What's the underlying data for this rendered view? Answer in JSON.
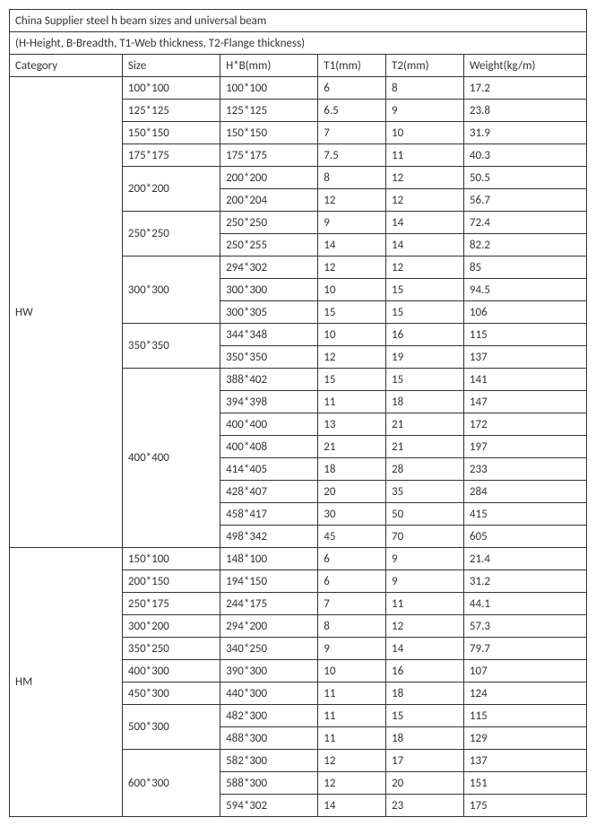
{
  "title": "China Supplier steel h beam sizes and universal beam",
  "subtitle": "(H-Height, B-Breadth, T1-Web thickness, T2-Flange thickness)",
  "columns": [
    "Category",
    "Size",
    "H*B(mm)",
    "T1(mm)",
    "T2(mm)",
    "Weight(kg/m)"
  ],
  "categories": [
    {
      "name": "HW",
      "sizes": [
        {
          "size": "100*100",
          "rows": [
            {
              "hb": "100*100",
              "t1": "6",
              "t2": "8",
              "wt": "17.2"
            }
          ]
        },
        {
          "size": "125*125",
          "rows": [
            {
              "hb": "125*125",
              "t1": "6.5",
              "t2": "9",
              "wt": "23.8"
            }
          ]
        },
        {
          "size": "150*150",
          "rows": [
            {
              "hb": "150*150",
              "t1": "7",
              "t2": "10",
              "wt": "31.9"
            }
          ]
        },
        {
          "size": "175*175",
          "rows": [
            {
              "hb": "175*175",
              "t1": "7.5",
              "t2": "11",
              "wt": "40.3"
            }
          ]
        },
        {
          "size": "200*200",
          "rows": [
            {
              "hb": "200*200",
              "t1": "8",
              "t2": "12",
              "wt": "50.5"
            },
            {
              "hb": "200*204",
              "t1": "12",
              "t2": "12",
              "wt": "56.7"
            }
          ]
        },
        {
          "size": "250*250",
          "rows": [
            {
              "hb": "250*250",
              "t1": "9",
              "t2": "14",
              "wt": "72.4"
            },
            {
              "hb": "250*255",
              "t1": "14",
              "t2": "14",
              "wt": "82.2"
            }
          ]
        },
        {
          "size": "300*300",
          "rows": [
            {
              "hb": "294*302",
              "t1": "12",
              "t2": "12",
              "wt": "85"
            },
            {
              "hb": "300*300",
              "t1": "10",
              "t2": "15",
              "wt": "94.5"
            },
            {
              "hb": "300*305",
              "t1": "15",
              "t2": "15",
              "wt": "106"
            }
          ]
        },
        {
          "size": "350*350",
          "rows": [
            {
              "hb": "344*348",
              "t1": "10",
              "t2": "16",
              "wt": "115"
            },
            {
              "hb": "350*350",
              "t1": "12",
              "t2": "19",
              "wt": "137"
            }
          ]
        },
        {
          "size": "400*400",
          "rows": [
            {
              "hb": "388*402",
              "t1": "15",
              "t2": "15",
              "wt": "141"
            },
            {
              "hb": "394*398",
              "t1": "11",
              "t2": "18",
              "wt": "147"
            },
            {
              "hb": "400*400",
              "t1": "13",
              "t2": "21",
              "wt": "172"
            },
            {
              "hb": "400*408",
              "t1": "21",
              "t2": "21",
              "wt": "197"
            },
            {
              "hb": "414*405",
              "t1": "18",
              "t2": "28",
              "wt": "233"
            },
            {
              "hb": "428*407",
              "t1": "20",
              "t2": "35",
              "wt": "284"
            },
            {
              "hb": "458*417",
              "t1": "30",
              "t2": "50",
              "wt": "415"
            },
            {
              "hb": "498*342",
              "t1": "45",
              "t2": "70",
              "wt": "605"
            }
          ]
        }
      ]
    },
    {
      "name": "HM",
      "sizes": [
        {
          "size": "150*100",
          "rows": [
            {
              "hb": "148*100",
              "t1": "6",
              "t2": "9",
              "wt": "21.4"
            }
          ]
        },
        {
          "size": "200*150",
          "rows": [
            {
              "hb": "194*150",
              "t1": "6",
              "t2": "9",
              "wt": "31.2"
            }
          ]
        },
        {
          "size": "250*175",
          "rows": [
            {
              "hb": "244*175",
              "t1": "7",
              "t2": "11",
              "wt": "44.1"
            }
          ]
        },
        {
          "size": "300*200",
          "rows": [
            {
              "hb": "294*200",
              "t1": "8",
              "t2": "12",
              "wt": "57.3"
            }
          ]
        },
        {
          "size": "350*250",
          "rows": [
            {
              "hb": "340*250",
              "t1": "9",
              "t2": "14",
              "wt": "79.7"
            }
          ]
        },
        {
          "size": "400*300",
          "rows": [
            {
              "hb": "390*300",
              "t1": "10",
              "t2": "16",
              "wt": "107"
            }
          ]
        },
        {
          "size": "450*300",
          "rows": [
            {
              "hb": "440*300",
              "t1": "11",
              "t2": "18",
              "wt": "124"
            }
          ]
        },
        {
          "size": "500*300",
          "rows": [
            {
              "hb": "482*300",
              "t1": "11",
              "t2": "15",
              "wt": "115"
            },
            {
              "hb": "488*300",
              "t1": "11",
              "t2": "18",
              "wt": "129"
            }
          ]
        },
        {
          "size": "600*300",
          "rows": [
            {
              "hb": "582*300",
              "t1": "12",
              "t2": "17",
              "wt": "137"
            },
            {
              "hb": "588*300",
              "t1": "12",
              "t2": "20",
              "wt": "151"
            },
            {
              "hb": "594*302",
              "t1": "14",
              "t2": "23",
              "wt": "175"
            }
          ]
        }
      ]
    }
  ]
}
